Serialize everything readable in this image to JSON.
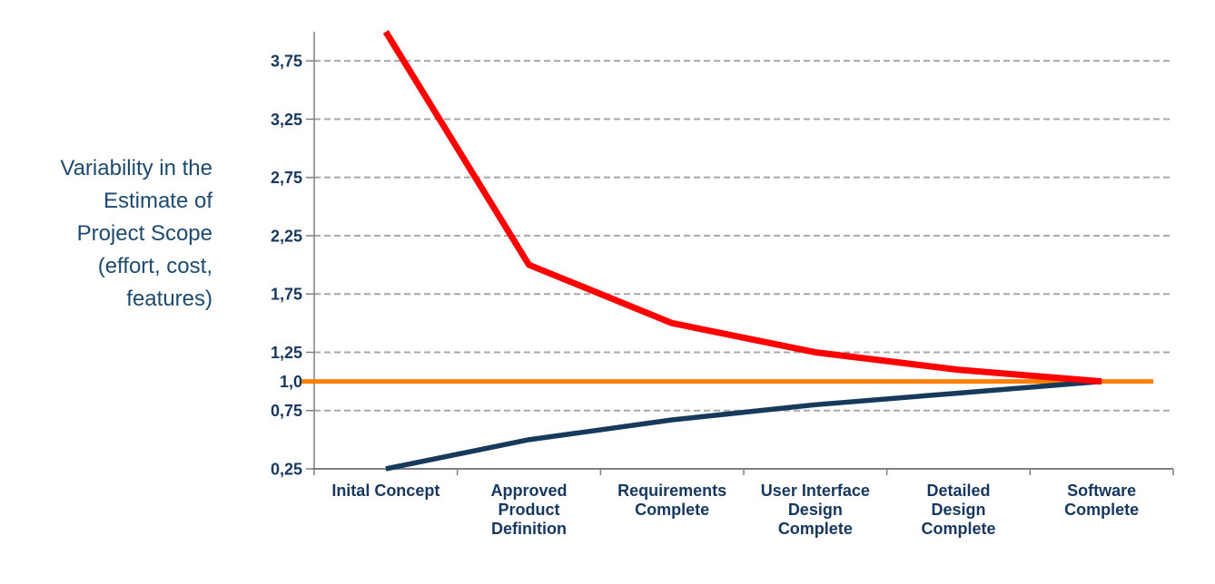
{
  "chart_data": {
    "type": "line",
    "title": "",
    "y_axis_title": "Variability in the Estimate of Project Scope (effort, cost, features)",
    "y_axis_title_lines": [
      "Variability in the",
      "Estimate of",
      "Project Scope",
      "(effort, cost,",
      "features)"
    ],
    "categories": [
      "Inital Concept",
      "Approved Product Definition",
      "Requirements Complete",
      "User Interface Design Complete",
      "Detailed Design Complete",
      "Software Complete"
    ],
    "category_label_lines": [
      [
        "Inital Concept"
      ],
      [
        "Approved",
        "Product",
        "Definition"
      ],
      [
        "Requirements",
        "Complete"
      ],
      [
        "User Interface",
        "Design",
        "Complete"
      ],
      [
        "Detailed",
        "Design",
        "Complete"
      ],
      [
        "Software",
        "Complete"
      ]
    ],
    "ylim": [
      0.25,
      4.0
    ],
    "y_ticks": [
      {
        "value": 3.75,
        "label": "3,75",
        "gridline": true
      },
      {
        "value": 3.25,
        "label": "3,25",
        "gridline": true
      },
      {
        "value": 2.75,
        "label": "2,75",
        "gridline": true
      },
      {
        "value": 2.25,
        "label": "2,25",
        "gridline": true
      },
      {
        "value": 1.75,
        "label": "1,75",
        "gridline": true
      },
      {
        "value": 1.25,
        "label": "1,25",
        "gridline": true
      },
      {
        "value": 1.0,
        "label": "1,0",
        "gridline": false
      },
      {
        "value": 0.75,
        "label": "0,75",
        "gridline": true
      },
      {
        "value": 0.25,
        "label": "0,25",
        "gridline": false
      }
    ],
    "series": [
      {
        "name": "upper-estimate",
        "color": "#fe0000",
        "stroke_width": 7,
        "values": [
          4.0,
          2.0,
          1.5,
          1.25,
          1.1,
          1.0
        ]
      },
      {
        "name": "lower-estimate",
        "color": "#16395c",
        "stroke_width": 5.5,
        "values": [
          0.25,
          0.5,
          0.67,
          0.8,
          0.9,
          1.0
        ]
      }
    ],
    "baseline": {
      "name": "target-estimate",
      "value": 1.0,
      "color": "#ff7f00",
      "stroke_width": 5
    },
    "grid": "horizontal-dashed",
    "gridline_color": "#a9a9a9",
    "axis_color": "#808080",
    "label_color": "#17375e",
    "legend": "none",
    "background": "#ffffff"
  }
}
